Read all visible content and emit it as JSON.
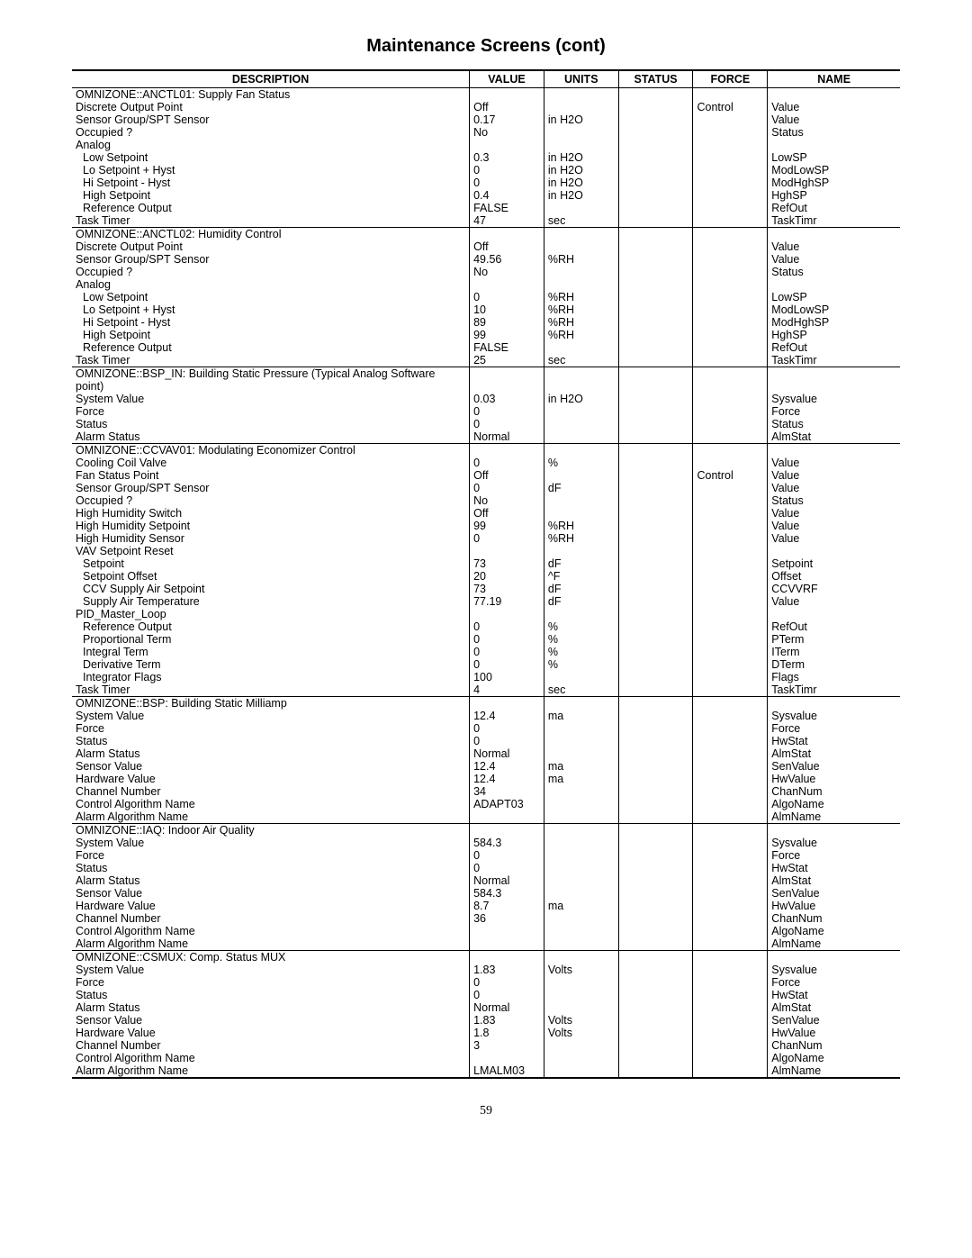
{
  "title": "Maintenance Screens (cont)",
  "page_number": "59",
  "columns": [
    "DESCRIPTION",
    "VALUE",
    "UNITS",
    "STATUS",
    "FORCE",
    "NAME"
  ],
  "col_widths_pct": [
    48,
    9,
    9,
    9,
    9,
    16
  ],
  "fonts": {
    "title_family": "Arial",
    "title_size_pt": 15,
    "title_weight": "bold",
    "body_family": "Arial",
    "body_size_pt": 9.5,
    "page_number_family": "Times New Roman",
    "page_number_size_pt": 11
  },
  "colors": {
    "text": "#000000",
    "rule": "#000000",
    "background": "#ffffff"
  },
  "sections": [
    {
      "header": "OMNIZONE::ANCTL01: Supply Fan Status",
      "rows": [
        {
          "desc": "Discrete Output Point",
          "value": "Off",
          "units": "",
          "status": "",
          "force": "Control",
          "name": "Value"
        },
        {
          "desc": "Sensor Group/SPT Sensor",
          "value": "0.17",
          "units": "in H2O",
          "status": "",
          "force": "",
          "name": "Value"
        },
        {
          "desc": "Occupied ?",
          "value": "No",
          "units": "",
          "status": "",
          "force": "",
          "name": "Status"
        },
        {
          "desc": "Analog",
          "value": "",
          "units": "",
          "status": "",
          "force": "",
          "name": ""
        },
        {
          "desc": "Low Setpoint",
          "indent": 1,
          "value": "0.3",
          "units": "in H2O",
          "status": "",
          "force": "",
          "name": "LowSP"
        },
        {
          "desc": "Lo Setpoint + Hyst",
          "indent": 1,
          "value": "0",
          "units": "in H2O",
          "status": "",
          "force": "",
          "name": "ModLowSP"
        },
        {
          "desc": "Hi Setpoint - Hyst",
          "indent": 1,
          "value": "0",
          "units": "in H2O",
          "status": "",
          "force": "",
          "name": "ModHghSP"
        },
        {
          "desc": "High Setpoint",
          "indent": 1,
          "value": "0.4",
          "units": "in H2O",
          "status": "",
          "force": "",
          "name": "HghSP"
        },
        {
          "desc": "Reference Output",
          "indent": 1,
          "value": "FALSE",
          "units": "",
          "status": "",
          "force": "",
          "name": "RefOut"
        },
        {
          "desc": "Task Timer",
          "value": "47",
          "units": "sec",
          "status": "",
          "force": "",
          "name": "TaskTimr"
        }
      ]
    },
    {
      "header": "OMNIZONE::ANCTL02: Humidity Control",
      "rows": [
        {
          "desc": "Discrete Output Point",
          "value": "Off",
          "units": "",
          "status": "",
          "force": "",
          "name": "Value"
        },
        {
          "desc": "Sensor Group/SPT Sensor",
          "value": "49.56",
          "units": "%RH",
          "status": "",
          "force": "",
          "name": "Value"
        },
        {
          "desc": "Occupied ?",
          "value": "No",
          "units": "",
          "status": "",
          "force": "",
          "name": "Status"
        },
        {
          "desc": "Analog",
          "value": "",
          "units": "",
          "status": "",
          "force": "",
          "name": ""
        },
        {
          "desc": "Low Setpoint",
          "indent": 1,
          "value": "0",
          "units": "%RH",
          "status": "",
          "force": "",
          "name": "LowSP"
        },
        {
          "desc": "Lo Setpoint + Hyst",
          "indent": 1,
          "value": "10",
          "units": "%RH",
          "status": "",
          "force": "",
          "name": "ModLowSP"
        },
        {
          "desc": "Hi Setpoint - Hyst",
          "indent": 1,
          "value": "89",
          "units": "%RH",
          "status": "",
          "force": "",
          "name": "ModHghSP"
        },
        {
          "desc": "High Setpoint",
          "indent": 1,
          "value": "99",
          "units": "%RH",
          "status": "",
          "force": "",
          "name": "HghSP"
        },
        {
          "desc": "Reference Output",
          "indent": 1,
          "value": "FALSE",
          "units": "",
          "status": "",
          "force": "",
          "name": "RefOut"
        },
        {
          "desc": "Task Timer",
          "value": "25",
          "units": "sec",
          "status": "",
          "force": "",
          "name": "TaskTimr"
        }
      ]
    },
    {
      "header": "OMNIZONE::BSP_IN: Building Static Pressure (Typical Analog Software point)",
      "rows": [
        {
          "desc": "System Value",
          "value": "0.03",
          "units": "in H2O",
          "status": "",
          "force": "",
          "name": "Sysvalue"
        },
        {
          "desc": "Force",
          "value": "0",
          "units": "",
          "status": "",
          "force": "",
          "name": "Force"
        },
        {
          "desc": "Status",
          "value": "0",
          "units": "",
          "status": "",
          "force": "",
          "name": "Status"
        },
        {
          "desc": "Alarm Status",
          "value": "Normal",
          "units": "",
          "status": "",
          "force": "",
          "name": "AlmStat"
        }
      ]
    },
    {
      "header": "OMNIZONE::CCVAV01: Modulating Economizer Control",
      "rows": [
        {
          "desc": "Cooling Coil Valve",
          "value": "0",
          "units": "%",
          "status": "",
          "force": "",
          "name": "Value"
        },
        {
          "desc": "Fan Status Point",
          "value": "Off",
          "units": "",
          "status": "",
          "force": "Control",
          "name": "Value"
        },
        {
          "desc": "Sensor Group/SPT Sensor",
          "value": "0",
          "units": "dF",
          "status": "",
          "force": "",
          "name": "Value"
        },
        {
          "desc": "Occupied ?",
          "value": "No",
          "units": "",
          "status": "",
          "force": "",
          "name": "Status"
        },
        {
          "desc": "High Humidity Switch",
          "value": "Off",
          "units": "",
          "status": "",
          "force": "",
          "name": "Value"
        },
        {
          "desc": "High Humidity Setpoint",
          "value": "99",
          "units": "%RH",
          "status": "",
          "force": "",
          "name": "Value"
        },
        {
          "desc": "High Humidity Sensor",
          "value": "0",
          "units": "%RH",
          "status": "",
          "force": "",
          "name": "Value"
        },
        {
          "desc": "VAV Setpoint Reset",
          "value": "",
          "units": "",
          "status": "",
          "force": "",
          "name": ""
        },
        {
          "desc": "Setpoint",
          "indent": 1,
          "value": "73",
          "units": "dF",
          "status": "",
          "force": "",
          "name": "Setpoint"
        },
        {
          "desc": "Setpoint Offset",
          "indent": 1,
          "value": "20",
          "units": "^F",
          "status": "",
          "force": "",
          "name": "Offset"
        },
        {
          "desc": "CCV Supply Air Setpoint",
          "indent": 1,
          "value": "73",
          "units": "dF",
          "status": "",
          "force": "",
          "name": "CCVVRF"
        },
        {
          "desc": "Supply Air Temperature",
          "indent": 1,
          "value": "77.19",
          "units": "dF",
          "status": "",
          "force": "",
          "name": "Value"
        },
        {
          "desc": "PID_Master_Loop",
          "value": "",
          "units": "",
          "status": "",
          "force": "",
          "name": ""
        },
        {
          "desc": "Reference Output",
          "indent": 1,
          "value": "0",
          "units": "%",
          "status": "",
          "force": "",
          "name": "RefOut"
        },
        {
          "desc": "Proportional Term",
          "indent": 1,
          "value": "0",
          "units": "%",
          "status": "",
          "force": "",
          "name": "PTerm"
        },
        {
          "desc": "Integral Term",
          "indent": 1,
          "value": "0",
          "units": "%",
          "status": "",
          "force": "",
          "name": "ITerm"
        },
        {
          "desc": "Derivative Term",
          "indent": 1,
          "value": "0",
          "units": "%",
          "status": "",
          "force": "",
          "name": "DTerm"
        },
        {
          "desc": "Integrator Flags",
          "indent": 1,
          "value": "100",
          "units": "",
          "status": "",
          "force": "",
          "name": "Flags"
        },
        {
          "desc": "Task Timer",
          "value": "4",
          "units": "sec",
          "status": "",
          "force": "",
          "name": "TaskTimr"
        }
      ]
    },
    {
      "header": "OMNIZONE::BSP: Building Static Milliamp",
      "rows": [
        {
          "desc": "System Value",
          "value": "12.4",
          "units": "ma",
          "status": "",
          "force": "",
          "name": "Sysvalue"
        },
        {
          "desc": "Force",
          "value": "0",
          "units": "",
          "status": "",
          "force": "",
          "name": "Force"
        },
        {
          "desc": "Status",
          "value": "0",
          "units": "",
          "status": "",
          "force": "",
          "name": "HwStat"
        },
        {
          "desc": "Alarm Status",
          "value": "Normal",
          "units": "",
          "status": "",
          "force": "",
          "name": "AlmStat"
        },
        {
          "desc": "Sensor Value",
          "value": "12.4",
          "units": "ma",
          "status": "",
          "force": "",
          "name": "SenValue"
        },
        {
          "desc": "Hardware Value",
          "value": "12.4",
          "units": "ma",
          "status": "",
          "force": "",
          "name": "HwValue"
        },
        {
          "desc": "Channel Number",
          "value": "34",
          "units": "",
          "status": "",
          "force": "",
          "name": "ChanNum"
        },
        {
          "desc": "Control Algorithm Name",
          "value": "ADAPT03",
          "units": "",
          "status": "",
          "force": "",
          "name": "AlgoName"
        },
        {
          "desc": "Alarm Algorithm Name",
          "value": "",
          "units": "",
          "status": "",
          "force": "",
          "name": "AlmName"
        }
      ]
    },
    {
      "header": "OMNIZONE::IAQ: Indoor Air Quality",
      "rows": [
        {
          "desc": "System Value",
          "value": "584.3",
          "units": "",
          "status": "",
          "force": "",
          "name": "Sysvalue"
        },
        {
          "desc": "Force",
          "value": "0",
          "units": "",
          "status": "",
          "force": "",
          "name": "Force"
        },
        {
          "desc": "Status",
          "value": "0",
          "units": "",
          "status": "",
          "force": "",
          "name": "HwStat"
        },
        {
          "desc": "Alarm Status",
          "value": "Normal",
          "units": "",
          "status": "",
          "force": "",
          "name": "AlmStat"
        },
        {
          "desc": "Sensor Value",
          "value": "584.3",
          "units": "",
          "status": "",
          "force": "",
          "name": "SenValue"
        },
        {
          "desc": "Hardware Value",
          "value": "8.7",
          "units": "ma",
          "status": "",
          "force": "",
          "name": "HwValue"
        },
        {
          "desc": "Channel Number",
          "value": "36",
          "units": "",
          "status": "",
          "force": "",
          "name": "ChanNum"
        },
        {
          "desc": "Control Algorithm Name",
          "value": "",
          "units": "",
          "status": "",
          "force": "",
          "name": "AlgoName"
        },
        {
          "desc": "Alarm Algorithm Name",
          "value": "",
          "units": "",
          "status": "",
          "force": "",
          "name": "AlmName"
        }
      ]
    },
    {
      "header": "OMNIZONE::CSMUX: Comp. Status MUX",
      "rows": [
        {
          "desc": "System Value",
          "value": "1.83",
          "units": "Volts",
          "status": "",
          "force": "",
          "name": "Sysvalue"
        },
        {
          "desc": "Force",
          "value": "0",
          "units": "",
          "status": "",
          "force": "",
          "name": "Force"
        },
        {
          "desc": "Status",
          "value": "0",
          "units": "",
          "status": "",
          "force": "",
          "name": "HwStat"
        },
        {
          "desc": "Alarm Status",
          "value": "Normal",
          "units": "",
          "status": "",
          "force": "",
          "name": "AlmStat"
        },
        {
          "desc": "Sensor Value",
          "value": "1.83",
          "units": "Volts",
          "status": "",
          "force": "",
          "name": "SenValue"
        },
        {
          "desc": "Hardware Value",
          "value": "1.8",
          "units": "Volts",
          "status": "",
          "force": "",
          "name": "HwValue"
        },
        {
          "desc": "Channel Number",
          "value": "3",
          "units": "",
          "status": "",
          "force": "",
          "name": "ChanNum"
        },
        {
          "desc": "Control Algorithm Name",
          "value": "",
          "units": "",
          "status": "",
          "force": "",
          "name": "AlgoName"
        },
        {
          "desc": "Alarm Algorithm Name",
          "value": "LMALM03",
          "units": "",
          "status": "",
          "force": "",
          "name": "AlmName"
        }
      ]
    }
  ]
}
